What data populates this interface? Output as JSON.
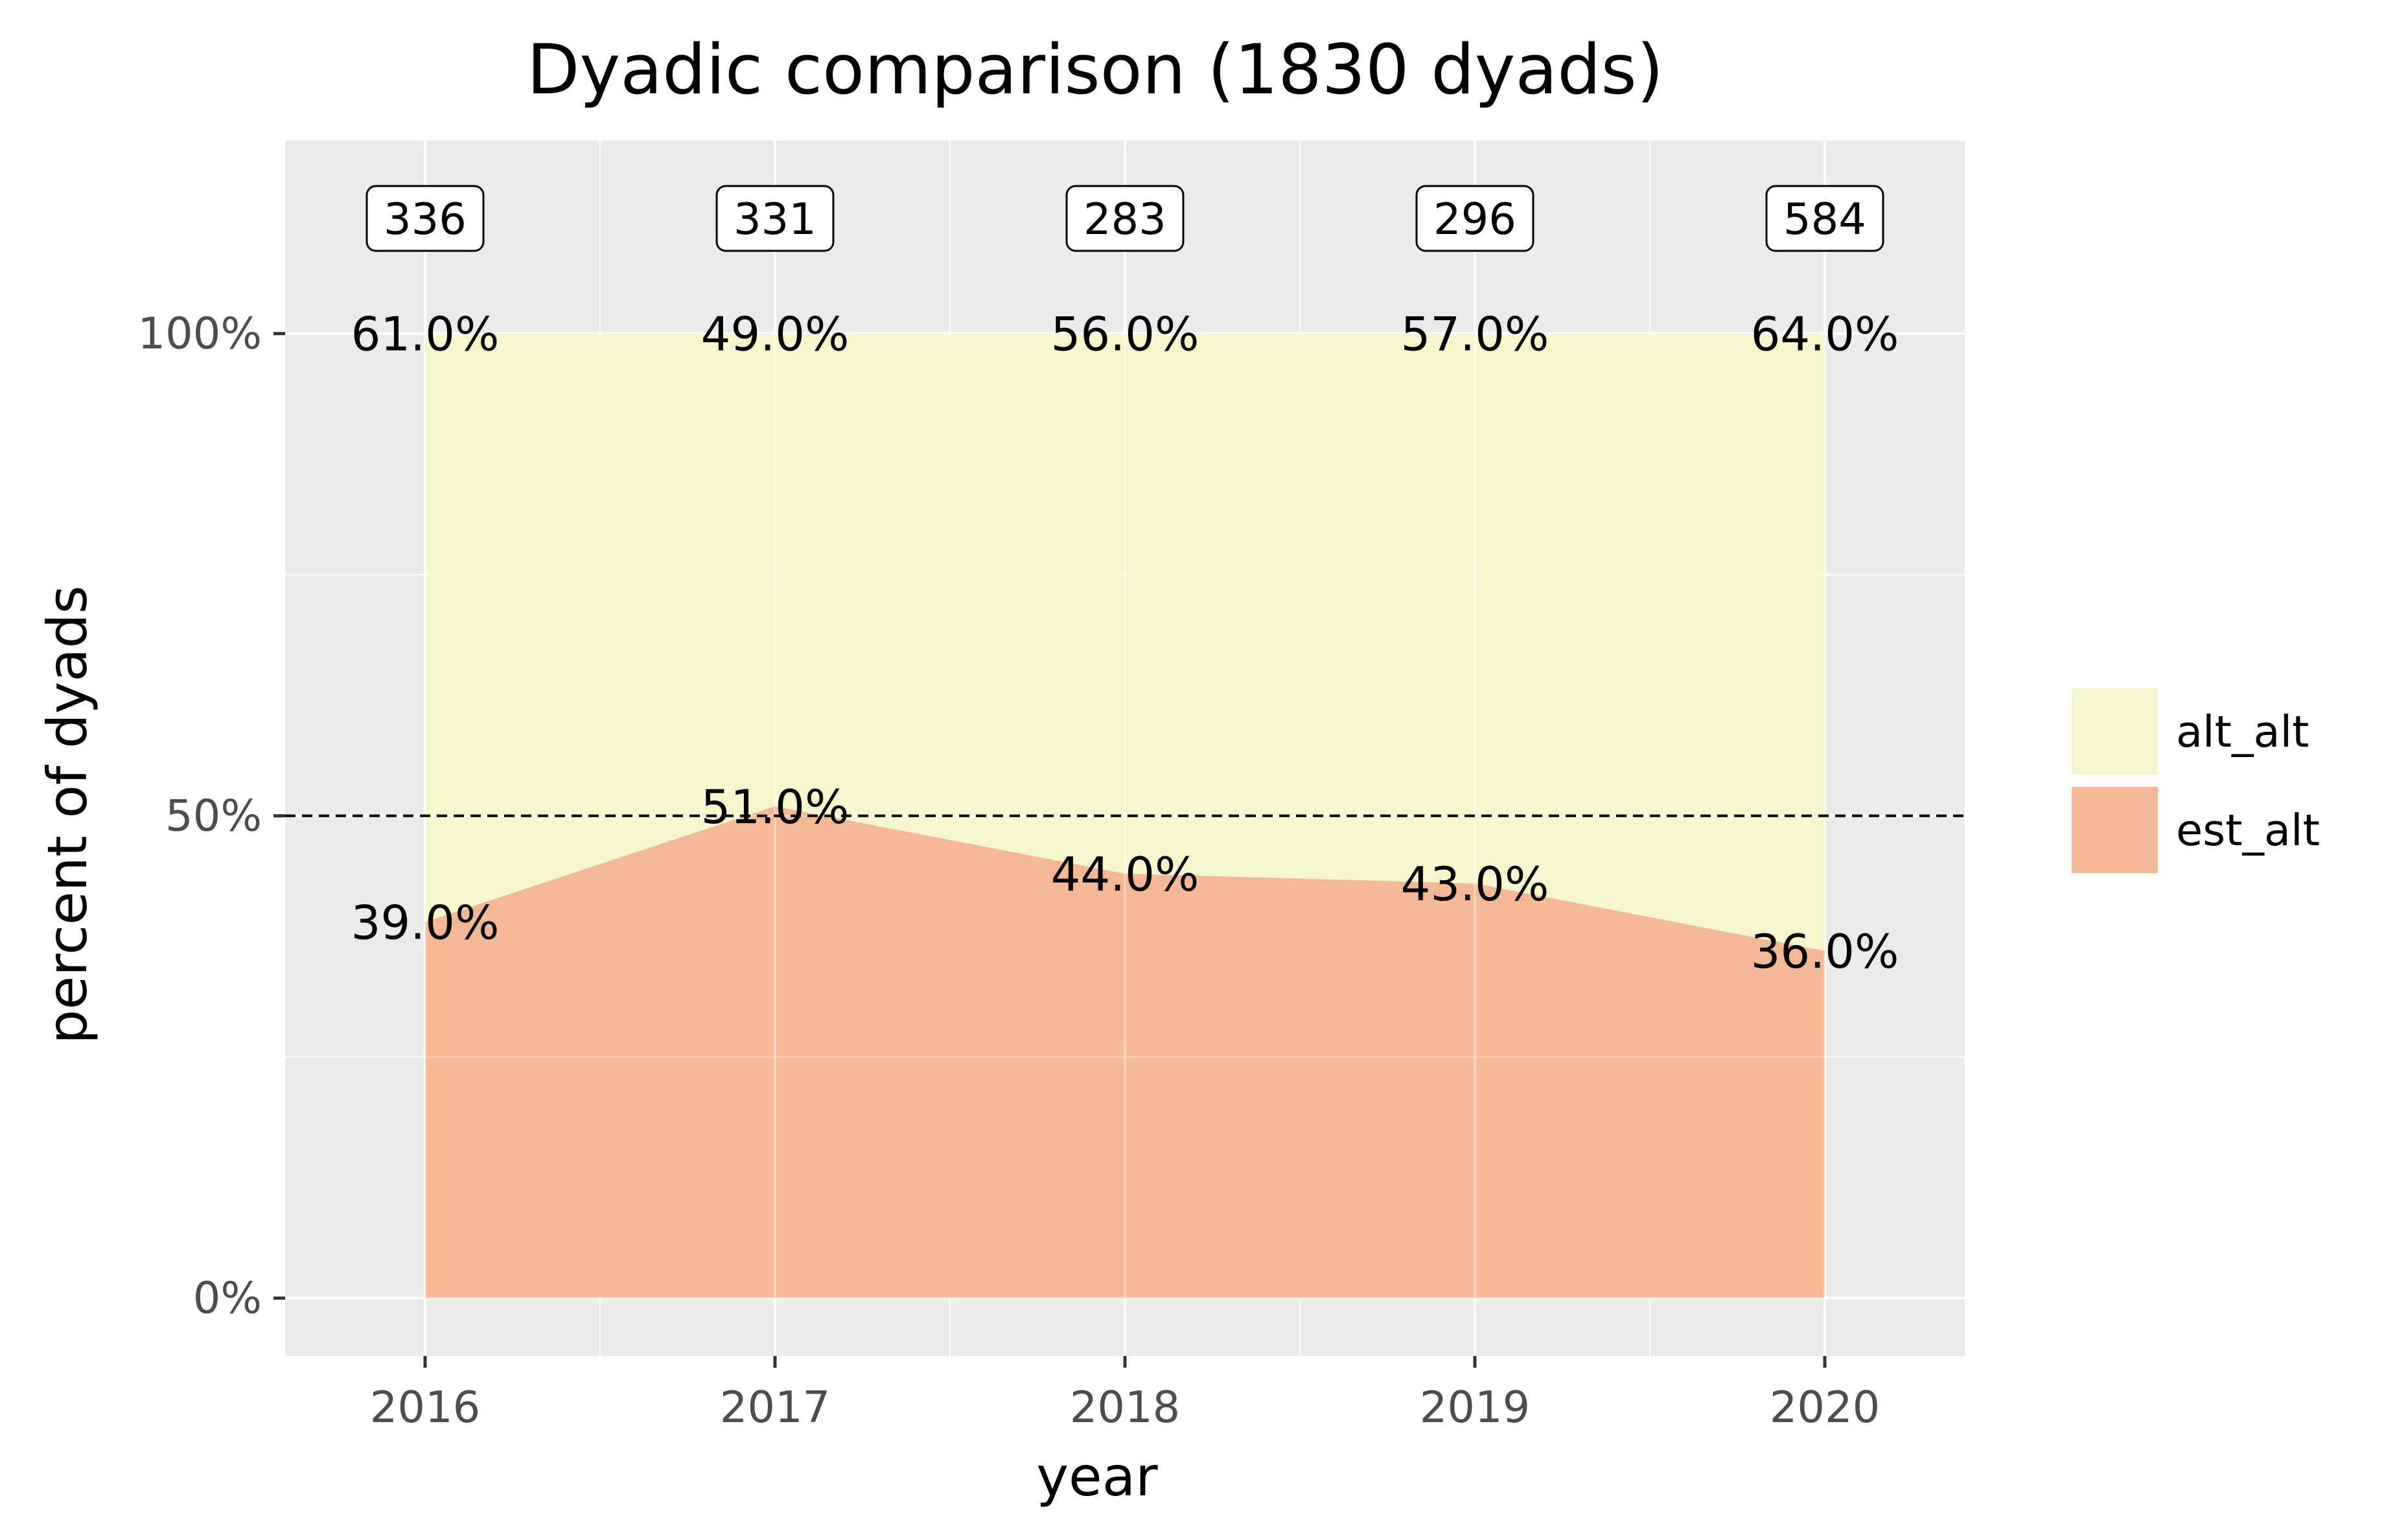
{
  "chart_data": {
    "type": "area",
    "title": "Dyadic comparison (1830 dyads)",
    "xlabel": "year",
    "ylabel": "percent of dyads",
    "x": [
      2016,
      2017,
      2018,
      2019,
      2020
    ],
    "x_tick_labels": [
      "2016",
      "2017",
      "2018",
      "2019",
      "2020"
    ],
    "ylim": [
      -0.06,
      1.2
    ],
    "y_ticks": [
      0,
      0.5,
      1.0
    ],
    "y_tick_labels": [
      "0%",
      "50%",
      "100%"
    ],
    "stacked": true,
    "series": [
      {
        "name": "est_alt",
        "color": "#f4b994",
        "values": [
          0.39,
          0.51,
          0.44,
          0.43,
          0.36
        ],
        "labels": [
          "39.0%",
          "51.0%",
          "44.0%",
          "43.0%",
          "36.0%"
        ]
      },
      {
        "name": "alt_alt",
        "color": "#f5f6cc",
        "values": [
          0.61,
          0.49,
          0.56,
          0.57,
          0.64
        ],
        "labels": [
          "61.0%",
          "49.0%",
          "56.0%",
          "57.0%",
          "64.0%"
        ]
      }
    ],
    "counts": [
      "336",
      "331",
      "283",
      "296",
      "584"
    ],
    "reference_line": {
      "y": 0.5,
      "style": "dashed",
      "color": "#000000"
    },
    "legend": {
      "placement": "right",
      "entries": [
        {
          "label": "alt_alt",
          "color": "#f5f6cc"
        },
        {
          "label": "est_alt",
          "color": "#f4b994"
        }
      ]
    },
    "panel_background": "#ebebeb",
    "grid": true
  }
}
